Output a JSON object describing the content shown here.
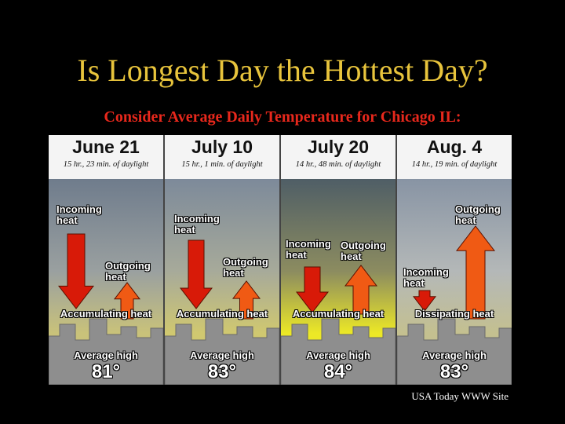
{
  "title": "Is Longest Day the Hottest Day?",
  "subtitle": "Consider Average Daily Temperature for Chicago IL:",
  "panels": [
    {
      "date": "June 21",
      "daylight": "15 hr., 23 min. of daylight",
      "incoming": "Incoming heat",
      "outgoing": "Outgoing heat",
      "balance": "Accumulating heat",
      "average_label": "Average high",
      "average_high": "81°"
    },
    {
      "date": "July 10",
      "daylight": "15 hr., 1 min. of daylight",
      "incoming": "Incoming heat",
      "outgoing": "Outgoing heat",
      "balance": "Accumulating heat",
      "average_label": "Average high",
      "average_high": "83°"
    },
    {
      "date": "July 20",
      "daylight": "14 hr., 48 min. of daylight",
      "incoming": "Incoming heat",
      "outgoing": "Outgoing heat",
      "balance": "Accumulating heat",
      "average_label": "Average high",
      "average_high": "84°"
    },
    {
      "date": "Aug. 4",
      "daylight": "14 hr., 19 min. of daylight",
      "incoming": "Incoming heat",
      "outgoing": "Outgoing heat",
      "balance": "Dissipating heat",
      "average_label": "Average high",
      "average_high": "83°"
    }
  ],
  "credit": "USA Today WWW Site"
}
